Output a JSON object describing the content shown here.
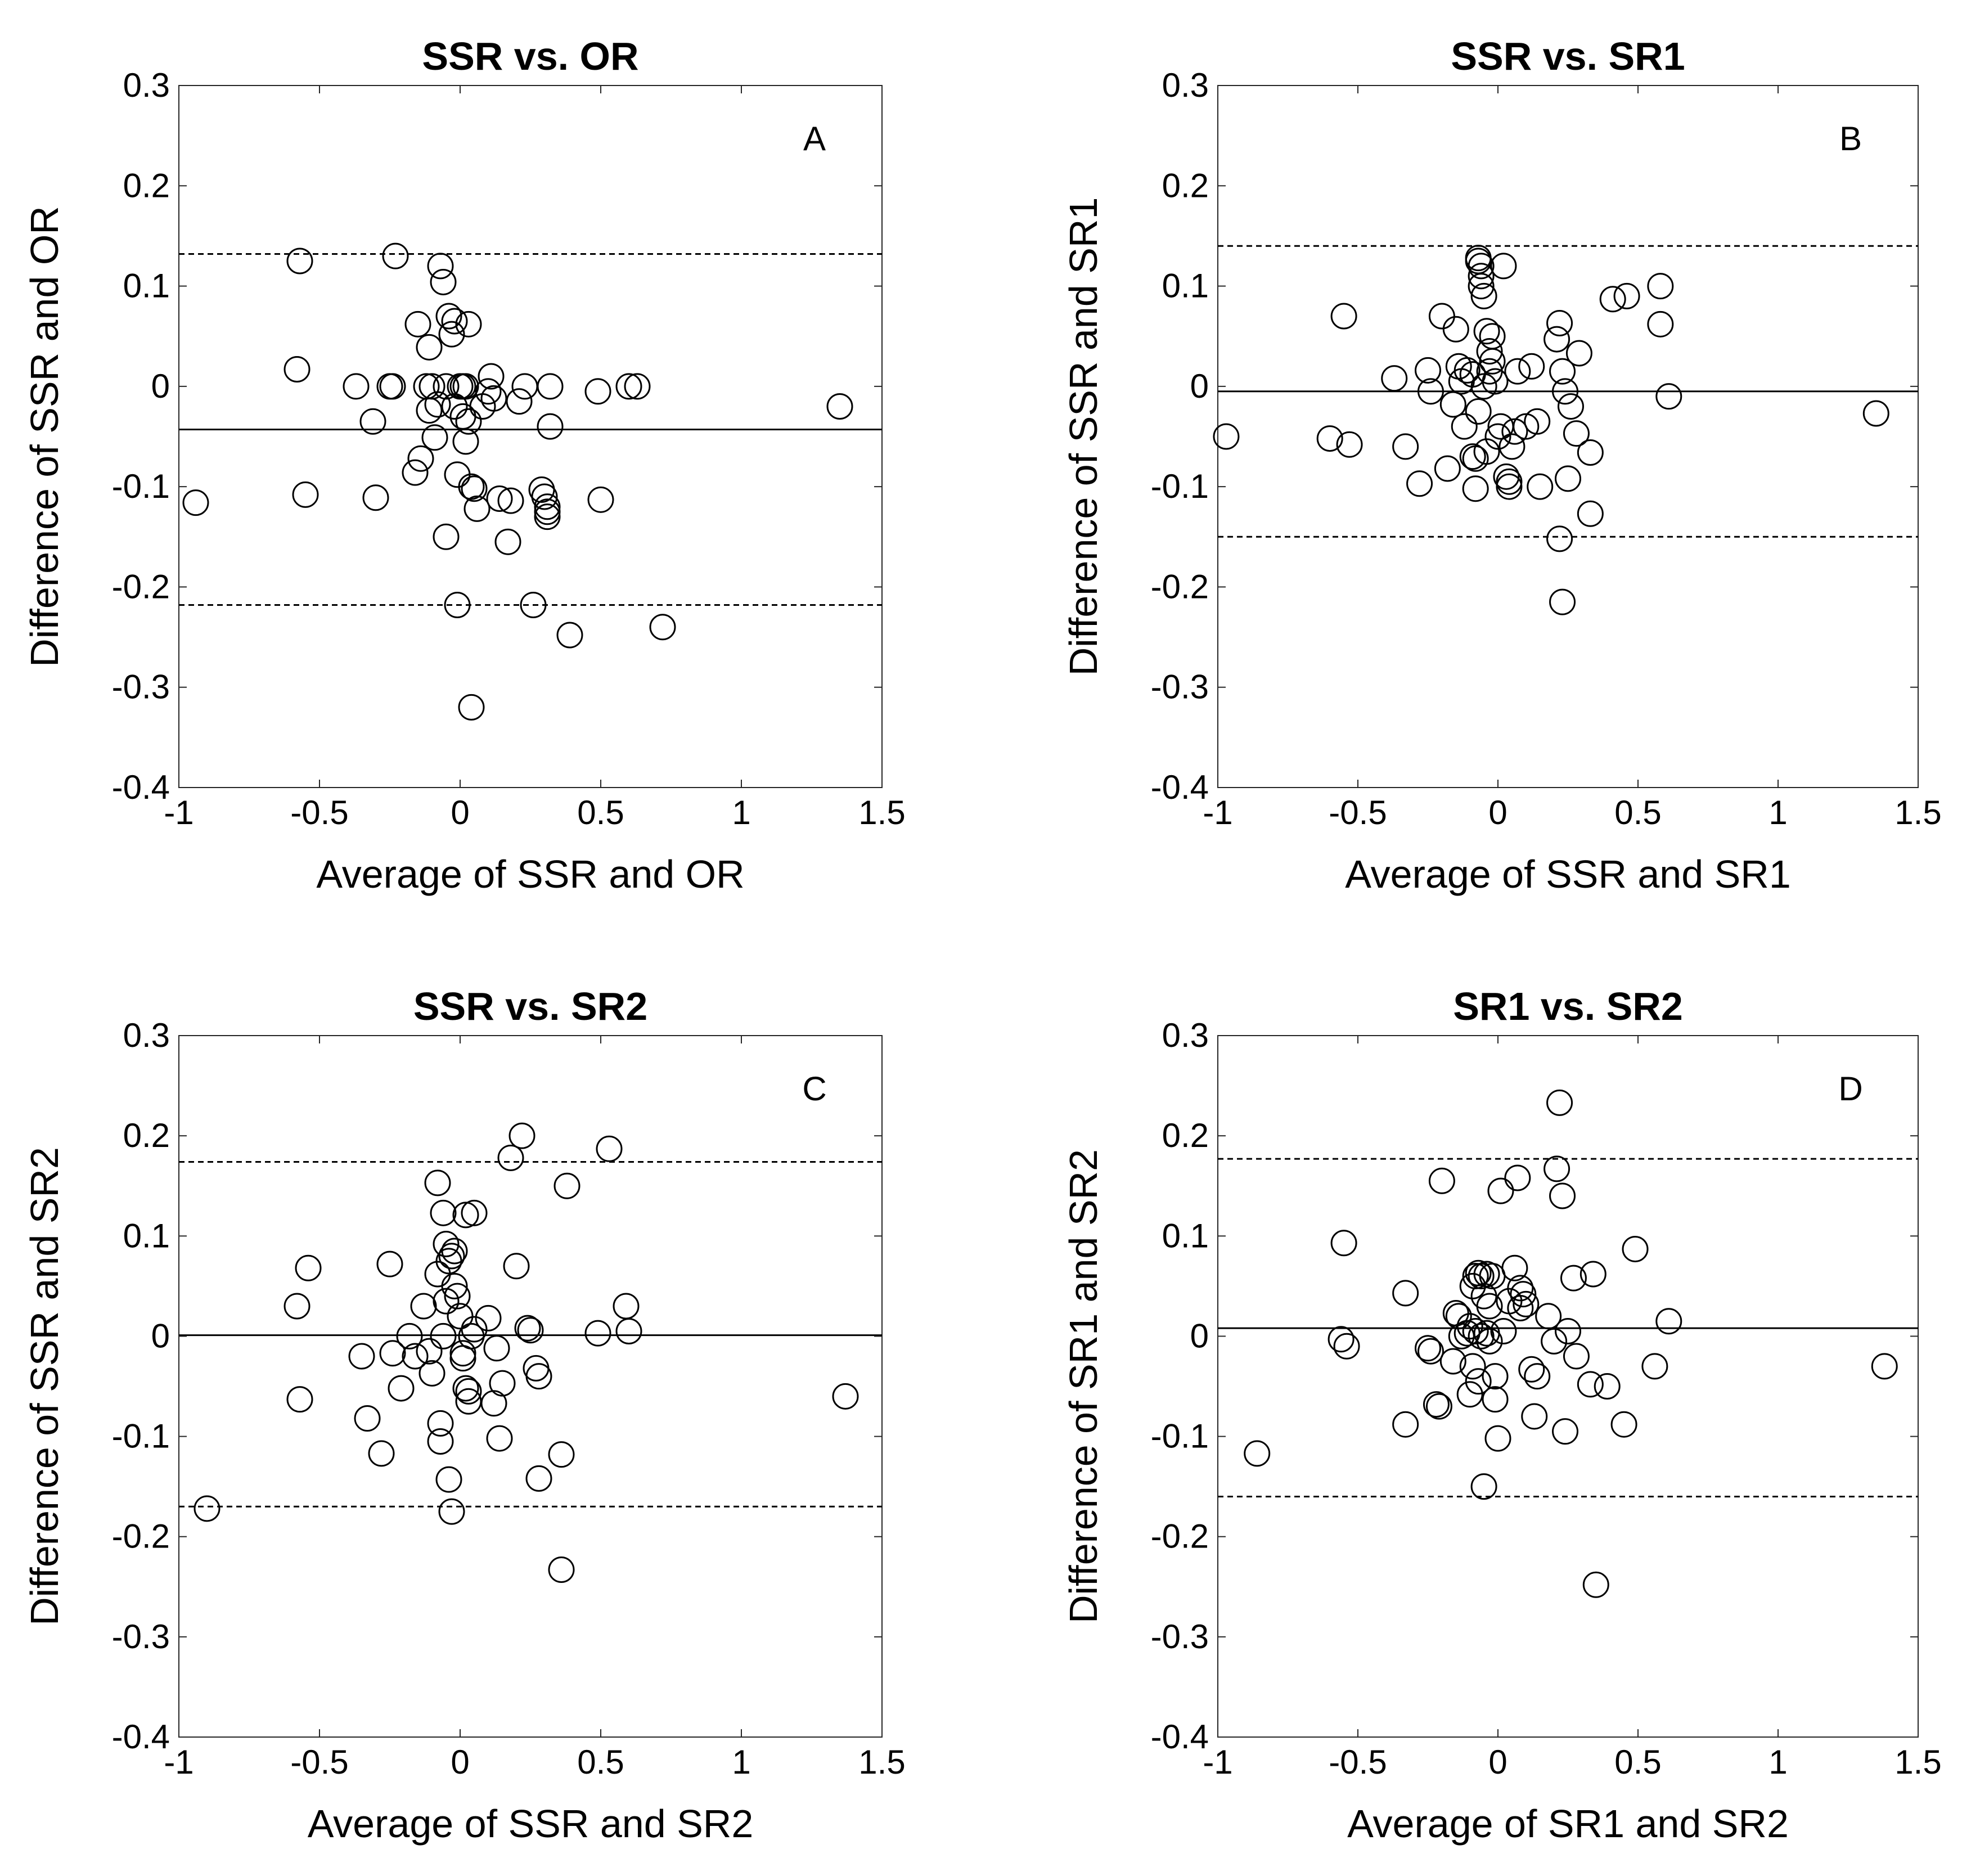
{
  "chart_data": [
    {
      "type": "scatter",
      "title": "SSR vs. OR",
      "panel_label": "A",
      "xlabel": "Average of SSR and OR",
      "ylabel": "Difference of SSR and OR",
      "xlim": [
        -1,
        1.5
      ],
      "ylim": [
        -0.4,
        0.3
      ],
      "xticks": [
        -1,
        -0.5,
        0,
        0.5,
        1,
        1.5
      ],
      "xtick_labels": [
        "-1",
        "-0.5",
        "0",
        "0.5",
        "1",
        "1.5"
      ],
      "yticks": [
        -0.4,
        -0.3,
        -0.2,
        -0.1,
        0,
        0.1,
        0.2,
        0.3
      ],
      "ytick_labels": [
        "-0.4",
        "-0.3",
        "-0.2",
        "-0.1",
        "0",
        "0.1",
        "0.2",
        "0.3"
      ],
      "mean_line": -0.043,
      "upper_limit": 0.132,
      "lower_limit": -0.218,
      "points": [
        [
          -0.94,
          -0.116
        ],
        [
          -0.57,
          0.125
        ],
        [
          -0.58,
          0.017
        ],
        [
          -0.55,
          -0.108
        ],
        [
          -0.37,
          0.0
        ],
        [
          -0.31,
          -0.035
        ],
        [
          -0.3,
          -0.111
        ],
        [
          -0.25,
          0.0
        ],
        [
          -0.24,
          0.0
        ],
        [
          -0.23,
          0.13
        ],
        [
          -0.16,
          -0.086
        ],
        [
          -0.15,
          0.062
        ],
        [
          -0.14,
          -0.072
        ],
        [
          -0.12,
          0.0
        ],
        [
          -0.11,
          0.039
        ],
        [
          -0.11,
          -0.024
        ],
        [
          -0.1,
          0.0
        ],
        [
          -0.09,
          -0.051
        ],
        [
          -0.08,
          -0.018
        ],
        [
          -0.07,
          0.12
        ],
        [
          -0.06,
          0.104
        ],
        [
          -0.05,
          0.0
        ],
        [
          -0.05,
          -0.15
        ],
        [
          -0.04,
          0.07
        ],
        [
          -0.03,
          0.052
        ],
        [
          -0.02,
          0.065
        ],
        [
          -0.02,
          -0.02
        ],
        [
          -0.01,
          -0.218
        ],
        [
          -0.01,
          -0.088
        ],
        [
          0.0,
          0.0
        ],
        [
          0.01,
          -0.03
        ],
        [
          0.01,
          0.0
        ],
        [
          0.02,
          0.0
        ],
        [
          0.02,
          -0.055
        ],
        [
          0.03,
          0.062
        ],
        [
          0.03,
          -0.035
        ],
        [
          0.04,
          -0.1
        ],
        [
          0.04,
          -0.32
        ],
        [
          0.05,
          -0.102
        ],
        [
          0.06,
          -0.122
        ],
        [
          0.08,
          -0.02
        ],
        [
          0.1,
          -0.005
        ],
        [
          0.11,
          0.01
        ],
        [
          0.12,
          -0.012
        ],
        [
          0.14,
          -0.112
        ],
        [
          0.17,
          -0.155
        ],
        [
          0.18,
          -0.114
        ],
        [
          0.21,
          -0.015
        ],
        [
          0.23,
          0.0
        ],
        [
          0.26,
          -0.218
        ],
        [
          0.29,
          -0.103
        ],
        [
          0.3,
          -0.11
        ],
        [
          0.31,
          -0.12
        ],
        [
          0.31,
          -0.125
        ],
        [
          0.31,
          -0.13
        ],
        [
          0.32,
          0.0
        ],
        [
          0.32,
          -0.04
        ],
        [
          0.39,
          -0.248
        ],
        [
          0.49,
          -0.005
        ],
        [
          0.5,
          -0.113
        ],
        [
          0.6,
          0.0
        ],
        [
          0.63,
          0.0
        ],
        [
          0.72,
          -0.24
        ],
        [
          1.35,
          -0.02
        ]
      ]
    },
    {
      "type": "scatter",
      "title": "SSR vs. SR1",
      "panel_label": "B",
      "xlabel": "Average of SSR and SR1",
      "ylabel": "Difference of SSR and SR1",
      "xlim": [
        -1,
        1.5
      ],
      "ylim": [
        -0.4,
        0.3
      ],
      "xticks": [
        -1,
        -0.5,
        0,
        0.5,
        1,
        1.5
      ],
      "xtick_labels": [
        "-1",
        "-0.5",
        "0",
        "0.5",
        "1",
        "1.5"
      ],
      "yticks": [
        -0.4,
        -0.3,
        -0.2,
        -0.1,
        0,
        0.1,
        0.2,
        0.3
      ],
      "ytick_labels": [
        "-0.4",
        "-0.3",
        "-0.2",
        "-0.1",
        "0",
        "0.1",
        "0.2",
        "0.3"
      ],
      "mean_line": -0.005,
      "upper_limit": 0.14,
      "lower_limit": -0.15,
      "points": [
        [
          -0.97,
          -0.05
        ],
        [
          -0.6,
          -0.052
        ],
        [
          -0.55,
          0.07
        ],
        [
          -0.53,
          -0.058
        ],
        [
          -0.37,
          0.008
        ],
        [
          -0.33,
          -0.06
        ],
        [
          -0.28,
          -0.097
        ],
        [
          -0.25,
          0.016
        ],
        [
          -0.24,
          -0.005
        ],
        [
          -0.2,
          0.07
        ],
        [
          -0.18,
          -0.082
        ],
        [
          -0.16,
          -0.018
        ],
        [
          -0.15,
          0.057
        ],
        [
          -0.14,
          0.02
        ],
        [
          -0.13,
          0.005
        ],
        [
          -0.12,
          -0.04
        ],
        [
          -0.11,
          0.016
        ],
        [
          -0.09,
          -0.07
        ],
        [
          -0.09,
          0.012
        ],
        [
          -0.08,
          -0.102
        ],
        [
          -0.08,
          -0.072
        ],
        [
          -0.07,
          -0.025
        ],
        [
          -0.07,
          0.128
        ],
        [
          -0.07,
          0.125
        ],
        [
          -0.06,
          0.12
        ],
        [
          -0.06,
          0.11
        ],
        [
          -0.06,
          0.1
        ],
        [
          -0.05,
          0.09
        ],
        [
          -0.05,
          0.0
        ],
        [
          -0.04,
          0.055
        ],
        [
          -0.04,
          -0.065
        ],
        [
          -0.03,
          0.035
        ],
        [
          -0.03,
          0.015
        ],
        [
          -0.02,
          0.025
        ],
        [
          -0.02,
          0.05
        ],
        [
          -0.01,
          0.005
        ],
        [
          0.0,
          -0.05
        ],
        [
          0.01,
          -0.04
        ],
        [
          0.02,
          0.12
        ],
        [
          0.03,
          -0.09
        ],
        [
          0.04,
          -0.1
        ],
        [
          0.04,
          -0.095
        ],
        [
          0.05,
          -0.06
        ],
        [
          0.06,
          -0.045
        ],
        [
          0.07,
          0.015
        ],
        [
          0.1,
          -0.04
        ],
        [
          0.12,
          0.02
        ],
        [
          0.14,
          -0.035
        ],
        [
          0.15,
          -0.1
        ],
        [
          0.21,
          0.047
        ],
        [
          0.22,
          0.063
        ],
        [
          0.22,
          -0.152
        ],
        [
          0.23,
          0.015
        ],
        [
          0.23,
          -0.215
        ],
        [
          0.24,
          -0.005
        ],
        [
          0.25,
          -0.092
        ],
        [
          0.26,
          -0.02
        ],
        [
          0.28,
          -0.047
        ],
        [
          0.29,
          0.033
        ],
        [
          0.33,
          -0.066
        ],
        [
          0.33,
          -0.127
        ],
        [
          0.41,
          0.087
        ],
        [
          0.46,
          0.09
        ],
        [
          0.58,
          0.1
        ],
        [
          0.58,
          0.062
        ],
        [
          0.61,
          -0.01
        ],
        [
          1.35,
          -0.027
        ]
      ]
    },
    {
      "type": "scatter",
      "title": "SSR vs. SR2",
      "panel_label": "C",
      "xlabel": "Average of SSR and SR2",
      "ylabel": "Difference of SSR and SR2",
      "xlim": [
        -1,
        1.5
      ],
      "ylim": [
        -0.4,
        0.3
      ],
      "xticks": [
        -1,
        -0.5,
        0,
        0.5,
        1,
        1.5
      ],
      "xtick_labels": [
        "-1",
        "-0.5",
        "0",
        "0.5",
        "1",
        "1.5"
      ],
      "yticks": [
        -0.4,
        -0.3,
        -0.2,
        -0.1,
        0,
        0.1,
        0.2,
        0.3
      ],
      "ytick_labels": [
        "-0.4",
        "-0.3",
        "-0.2",
        "-0.1",
        "0",
        "0.1",
        "0.2",
        "0.3"
      ],
      "mean_line": 0.001,
      "upper_limit": 0.174,
      "lower_limit": -0.17,
      "points": [
        [
          -0.9,
          -0.172
        ],
        [
          -0.58,
          0.03
        ],
        [
          -0.57,
          -0.063
        ],
        [
          -0.54,
          0.068
        ],
        [
          -0.35,
          -0.02
        ],
        [
          -0.33,
          -0.082
        ],
        [
          -0.28,
          -0.117
        ],
        [
          -0.25,
          0.072
        ],
        [
          -0.24,
          -0.017
        ],
        [
          -0.21,
          -0.052
        ],
        [
          -0.18,
          0.0
        ],
        [
          -0.16,
          -0.02
        ],
        [
          -0.13,
          0.03
        ],
        [
          -0.11,
          -0.015
        ],
        [
          -0.1,
          -0.037
        ],
        [
          -0.08,
          0.062
        ],
        [
          -0.08,
          0.153
        ],
        [
          -0.07,
          -0.087
        ],
        [
          -0.07,
          -0.105
        ],
        [
          -0.06,
          0.123
        ],
        [
          -0.06,
          0.0
        ],
        [
          -0.05,
          0.035
        ],
        [
          -0.05,
          0.092
        ],
        [
          -0.04,
          0.075
        ],
        [
          -0.04,
          -0.143
        ],
        [
          -0.03,
          0.08
        ],
        [
          -0.03,
          -0.175
        ],
        [
          -0.02,
          0.085
        ],
        [
          -0.02,
          0.05
        ],
        [
          -0.01,
          0.04
        ],
        [
          0.0,
          0.02
        ],
        [
          0.01,
          -0.017
        ],
        [
          0.01,
          -0.022
        ],
        [
          0.02,
          0.121
        ],
        [
          0.02,
          -0.052
        ],
        [
          0.03,
          -0.055
        ],
        [
          0.03,
          -0.065
        ],
        [
          0.04,
          0.0
        ],
        [
          0.05,
          0.123
        ],
        [
          0.05,
          0.007
        ],
        [
          0.1,
          0.018
        ],
        [
          0.12,
          -0.067
        ],
        [
          0.13,
          -0.012
        ],
        [
          0.14,
          -0.102
        ],
        [
          0.15,
          -0.047
        ],
        [
          0.18,
          0.178
        ],
        [
          0.2,
          0.07
        ],
        [
          0.22,
          0.2
        ],
        [
          0.24,
          0.008
        ],
        [
          0.25,
          0.006
        ],
        [
          0.27,
          -0.032
        ],
        [
          0.28,
          -0.04
        ],
        [
          0.28,
          -0.142
        ],
        [
          0.36,
          -0.118
        ],
        [
          0.36,
          -0.233
        ],
        [
          0.38,
          0.15
        ],
        [
          0.49,
          0.003
        ],
        [
          0.53,
          0.187
        ],
        [
          0.59,
          0.03
        ],
        [
          0.6,
          0.005
        ],
        [
          1.37,
          -0.06
        ]
      ]
    },
    {
      "type": "scatter",
      "title": "SR1 vs. SR2",
      "panel_label": "D",
      "xlabel": "Average of SR1 and SR2",
      "ylabel": "Difference of SR1 and SR2",
      "xlim": [
        -1,
        1.5
      ],
      "ylim": [
        -0.4,
        0.3
      ],
      "xticks": [
        -1,
        -0.5,
        0,
        0.5,
        1,
        1.5
      ],
      "xtick_labels": [
        "-1",
        "-0.5",
        "0",
        "0.5",
        "1",
        "1.5"
      ],
      "yticks": [
        -0.4,
        -0.3,
        -0.2,
        -0.1,
        0,
        0.1,
        0.2,
        0.3
      ],
      "ytick_labels": [
        "-0.4",
        "-0.3",
        "-0.2",
        "-0.1",
        "0",
        "0.1",
        "0.2",
        "0.3"
      ],
      "mean_line": 0.008,
      "upper_limit": 0.177,
      "lower_limit": -0.16,
      "points": [
        [
          -0.86,
          -0.117
        ],
        [
          -0.56,
          -0.003
        ],
        [
          -0.55,
          0.093
        ],
        [
          -0.54,
          -0.01
        ],
        [
          -0.33,
          0.043
        ],
        [
          -0.33,
          -0.088
        ],
        [
          -0.25,
          -0.012
        ],
        [
          -0.24,
          -0.015
        ],
        [
          -0.22,
          -0.068
        ],
        [
          -0.21,
          -0.07
        ],
        [
          -0.2,
          0.155
        ],
        [
          -0.16,
          -0.025
        ],
        [
          -0.15,
          0.023
        ],
        [
          -0.14,
          0.02
        ],
        [
          -0.13,
          0.0
        ],
        [
          -0.11,
          0.003
        ],
        [
          -0.1,
          -0.058
        ],
        [
          -0.1,
          0.01
        ],
        [
          -0.09,
          0.05
        ],
        [
          -0.09,
          -0.03
        ],
        [
          -0.08,
          0.06
        ],
        [
          -0.08,
          0.005
        ],
        [
          -0.07,
          0.063
        ],
        [
          -0.07,
          -0.045
        ],
        [
          -0.06,
          0.06
        ],
        [
          -0.06,
          0.0
        ],
        [
          -0.05,
          0.04
        ],
        [
          -0.05,
          -0.15
        ],
        [
          -0.04,
          0.062
        ],
        [
          -0.04,
          0.003
        ],
        [
          -0.03,
          0.03
        ],
        [
          -0.03,
          -0.005
        ],
        [
          -0.02,
          0.06
        ],
        [
          -0.01,
          -0.04
        ],
        [
          -0.01,
          -0.063
        ],
        [
          0.0,
          -0.102
        ],
        [
          0.01,
          0.145
        ],
        [
          0.02,
          0.005
        ],
        [
          0.04,
          0.035
        ],
        [
          0.06,
          0.068
        ],
        [
          0.07,
          0.158
        ],
        [
          0.08,
          0.028
        ],
        [
          0.08,
          0.048
        ],
        [
          0.09,
          0.042
        ],
        [
          0.1,
          0.032
        ],
        [
          0.12,
          -0.033
        ],
        [
          0.13,
          -0.08
        ],
        [
          0.14,
          -0.04
        ],
        [
          0.18,
          0.02
        ],
        [
          0.2,
          -0.005
        ],
        [
          0.21,
          0.167
        ],
        [
          0.22,
          0.233
        ],
        [
          0.23,
          0.14
        ],
        [
          0.24,
          -0.095
        ],
        [
          0.25,
          0.005
        ],
        [
          0.27,
          0.058
        ],
        [
          0.28,
          -0.02
        ],
        [
          0.33,
          -0.048
        ],
        [
          0.34,
          0.062
        ],
        [
          0.35,
          -0.248
        ],
        [
          0.39,
          -0.05
        ],
        [
          0.45,
          -0.088
        ],
        [
          0.49,
          0.087
        ],
        [
          0.56,
          -0.03
        ],
        [
          0.61,
          0.015
        ],
        [
          1.38,
          -0.03
        ]
      ]
    }
  ]
}
